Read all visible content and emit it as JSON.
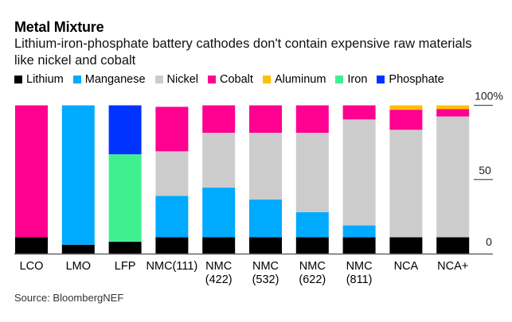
{
  "title": "Metal Mixture",
  "subtitle": "Lithium-iron-phosphate battery cathodes don't contain expensive raw materials like nickel and cobalt",
  "source": "Source: BloombergNEF",
  "colors": {
    "Lithium": "#000000",
    "Manganese": "#00aaff",
    "Nickel": "#cccccc",
    "Cobalt": "#ff0090",
    "Aluminum": "#ffc000",
    "Iron": "#40f090",
    "Phosphate": "#0033ff"
  },
  "chart_data": {
    "type": "bar",
    "stacked": true,
    "title": "Metal Mixture",
    "subtitle": "Lithium-iron-phosphate battery cathodes don't contain expensive raw materials like nickel and cobalt",
    "xlabel": "",
    "ylabel": "",
    "ylim": [
      0,
      100
    ],
    "y_ticks": [
      {
        "value": 100,
        "label": "100%"
      },
      {
        "value": 50,
        "label": "50"
      },
      {
        "value": 0,
        "label": "0"
      }
    ],
    "y_axis_position": "right",
    "grid": false,
    "legend_position": "top-left",
    "categories": [
      {
        "label": "LCO",
        "label2": ""
      },
      {
        "label": "LMO",
        "label2": ""
      },
      {
        "label": "LFP",
        "label2": ""
      },
      {
        "label": "NMC(111)",
        "label2": ""
      },
      {
        "label": "NMC",
        "label2": "(422)"
      },
      {
        "label": "NMC",
        "label2": "(532)"
      },
      {
        "label": "NMC",
        "label2": "(622)"
      },
      {
        "label": "NMC",
        "label2": "(811)"
      },
      {
        "label": "NCA",
        "label2": ""
      },
      {
        "label": "NCA+",
        "label2": ""
      }
    ],
    "series": [
      {
        "name": "Lithium",
        "values": [
          11,
          6,
          8,
          11,
          11,
          11,
          11,
          11,
          11,
          11
        ]
      },
      {
        "name": "Manganese",
        "values": [
          0,
          94,
          0,
          28,
          33.5,
          25.5,
          17,
          8,
          0,
          0
        ]
      },
      {
        "name": "Nickel",
        "values": [
          0,
          0,
          0,
          30,
          37,
          45,
          53.5,
          71.5,
          72.5,
          81.5
        ]
      },
      {
        "name": "Cobalt",
        "values": [
          89,
          0,
          0,
          30,
          18.5,
          18.5,
          18.5,
          9.5,
          13.5,
          5
        ]
      },
      {
        "name": "Aluminum",
        "values": [
          0,
          0,
          0,
          0,
          0,
          0,
          0,
          0,
          3,
          2.5
        ]
      },
      {
        "name": "Iron",
        "values": [
          0,
          0,
          59,
          0,
          0,
          0,
          0,
          0,
          0,
          0
        ]
      },
      {
        "name": "Phosphate",
        "values": [
          0,
          0,
          33,
          0,
          0,
          0,
          0,
          0,
          0,
          0
        ]
      }
    ]
  }
}
